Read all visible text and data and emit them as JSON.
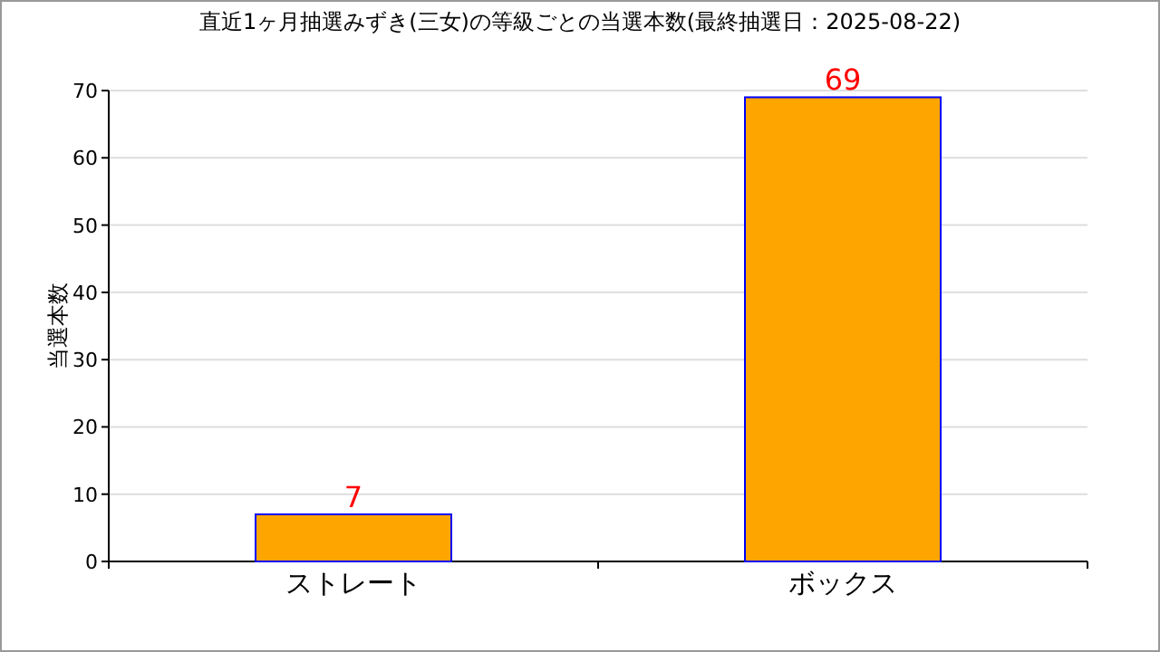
{
  "chart_data": {
    "type": "bar",
    "title": "直近1ヶ月抽選みずき(三女)の等級ごとの当選本数(最終抽選日：2025-08-22)",
    "ylabel": "当選本数",
    "categories": [
      "ストレート",
      "ボックス"
    ],
    "series": [
      {
        "color": "#ffa500",
        "values": [
          7,
          69
        ]
      }
    ],
    "ylim": [
      0,
      70
    ],
    "yticks": [
      0,
      10,
      20,
      30,
      40,
      50,
      60,
      70
    ],
    "grid": "y",
    "data_labels": true
  }
}
